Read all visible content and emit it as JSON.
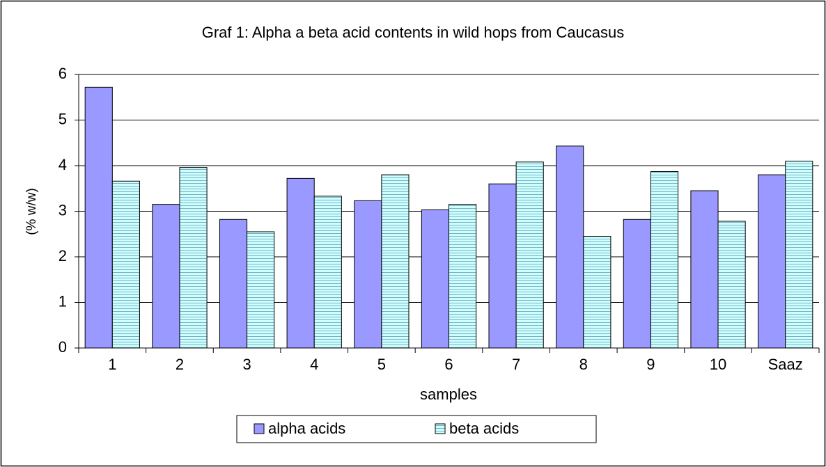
{
  "chart_data": {
    "type": "bar",
    "title": "Graf 1: Alpha a beta acid contents in wild hops from Caucasus",
    "x_label": "samples",
    "y_label": "(% w/w)",
    "categories": [
      "1",
      "2",
      "3",
      "4",
      "5",
      "6",
      "7",
      "8",
      "9",
      "10",
      "Saaz"
    ],
    "series": [
      {
        "name": "alpha acids",
        "color": "#9999ff",
        "values": [
          5.72,
          3.15,
          2.82,
          3.72,
          3.23,
          3.03,
          3.6,
          4.43,
          2.82,
          3.45,
          3.8
        ]
      },
      {
        "name": "beta acids",
        "color": "#ccffff",
        "values": [
          3.66,
          3.96,
          2.55,
          3.33,
          3.8,
          3.15,
          4.08,
          2.45,
          3.87,
          2.78,
          4.1
        ]
      }
    ],
    "ylim": [
      0,
      6
    ],
    "yticks": [
      0,
      1,
      2,
      3,
      4,
      5,
      6
    ],
    "grid": true,
    "legend": "bottom"
  }
}
